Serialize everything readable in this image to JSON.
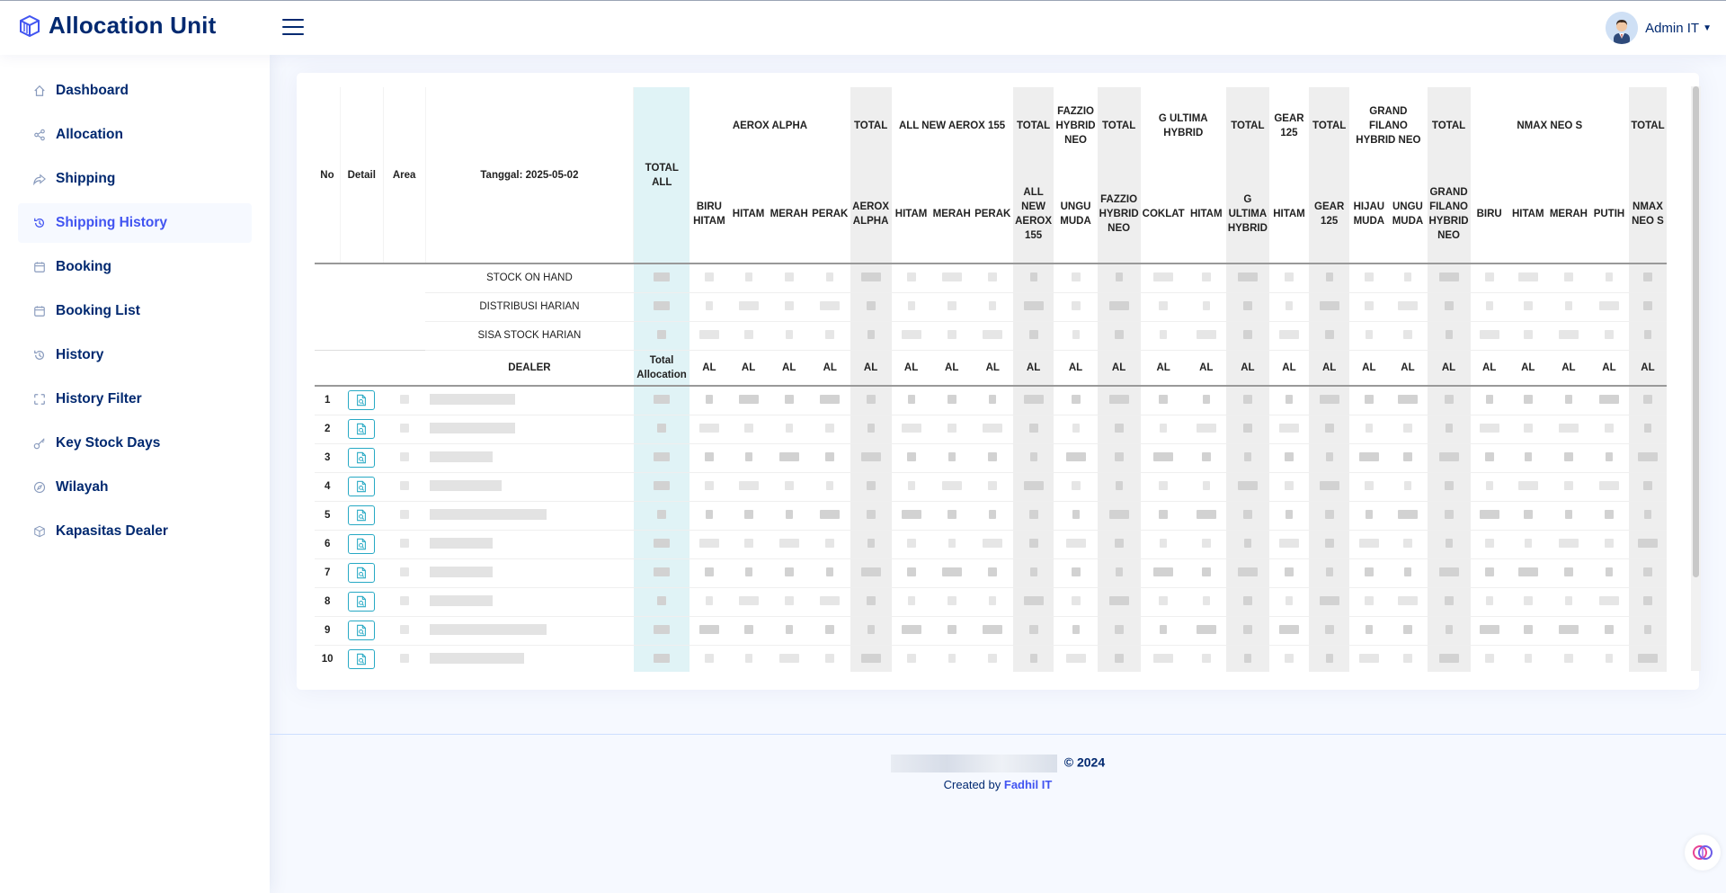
{
  "app": {
    "title": "Allocation Unit"
  },
  "header": {
    "user_name": "Admin IT"
  },
  "sidebar": {
    "items": [
      {
        "label": "Dashboard",
        "icon": "home-icon"
      },
      {
        "label": "Allocation",
        "icon": "share-icon"
      },
      {
        "label": "Shipping",
        "icon": "forward-icon"
      },
      {
        "label": "Shipping History",
        "icon": "history-icon"
      },
      {
        "label": "Booking",
        "icon": "calendar-icon"
      },
      {
        "label": "Booking List",
        "icon": "calendar-icon"
      },
      {
        "label": "History",
        "icon": "history-icon"
      },
      {
        "label": "History Filter",
        "icon": "filter-icon"
      },
      {
        "label": "Key Stock Days",
        "icon": "key-icon"
      },
      {
        "label": "Wilayah",
        "icon": "compass-icon"
      },
      {
        "label": "Kapasitas Dealer",
        "icon": "box-icon"
      }
    ],
    "active_index": 3
  },
  "table": {
    "headers": {
      "no": "No",
      "detail": "Detail",
      "area": "Area",
      "date": "Tanggal: 2025-05-02",
      "total_all": "TOTAL ALL"
    },
    "groups": [
      {
        "label": "AEROX ALPHA",
        "subs": [
          "BIRU HITAM",
          "HITAM",
          "MERAH",
          "PERAK"
        ],
        "total_label": "TOTAL",
        "total_sub": "AEROX ALPHA"
      },
      {
        "label": "ALL NEW AEROX 155",
        "subs": [
          "HITAM",
          "MERAH",
          "PERAK"
        ],
        "total_label": "TOTAL",
        "total_sub": "ALL NEW AEROX 155"
      },
      {
        "label": "FAZZIO HYBRID NEO",
        "subs": [
          "UNGU MUDA"
        ],
        "total_label": "TOTAL",
        "total_sub": "FAZZIO HYBRID NEO"
      },
      {
        "label": "G ULTIMA HYBRID",
        "subs": [
          "COKLAT",
          "HITAM"
        ],
        "total_label": "TOTAL",
        "total_sub": "G ULTIMA HYBRID"
      },
      {
        "label": "GEAR 125",
        "subs": [
          "HITAM"
        ],
        "total_label": "TOTAL",
        "total_sub": "GEAR 125"
      },
      {
        "label": "GRAND FILANO HYBRID NEO",
        "subs": [
          "HIJAU MUDA",
          "UNGU MUDA"
        ],
        "total_label": "TOTAL",
        "total_sub": "GRAND FILANO HYBRID NEO"
      },
      {
        "label": "NMAX NEO S",
        "subs": [
          "BIRU",
          "HITAM",
          "MERAH",
          "PUTIH"
        ],
        "total_label": "TOTAL",
        "total_sub": "NMAX NEO S"
      }
    ],
    "summary_rows": [
      "STOCK ON HAND",
      "DISTRIBUSI HARIAN",
      "SISA STOCK HARIAN"
    ],
    "dealer_header": "DEALER",
    "total_allocation": "Total Allocation",
    "al_label": "AL",
    "row_numbers": [
      "1",
      "2",
      "3",
      "4",
      "5",
      "6",
      "7",
      "8",
      "9",
      "10"
    ]
  },
  "footer": {
    "copyright": "© 2024",
    "created_by": "Created by",
    "author": "Fadhil IT"
  }
}
